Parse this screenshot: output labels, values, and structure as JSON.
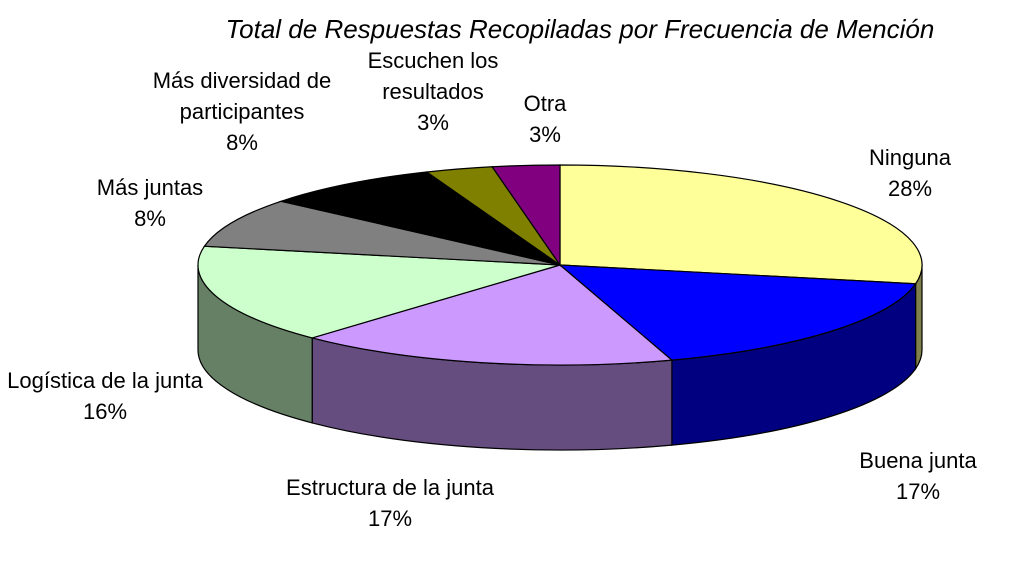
{
  "chart_data": {
    "type": "pie3d",
    "title": "Total de Respuestas Recopiladas por Frecuencia de Mención",
    "categories": [
      "Ninguna",
      "Buena junta",
      "Estructura de la junta",
      "Logística de la junta",
      "Más juntas",
      "Más diversidad de participantes",
      "Escuchen los resultados",
      "Otra"
    ],
    "values": [
      28,
      17,
      17,
      16,
      8,
      8,
      3,
      3
    ],
    "value_labels": [
      "28%",
      "17%",
      "17%",
      "16%",
      "8%",
      "8%",
      "3%",
      "3%"
    ],
    "colors": [
      "#FFFF99",
      "#0000FF",
      "#CC99FF",
      "#CCFFCC",
      "#808080",
      "#000000",
      "#808000",
      "#800080"
    ]
  }
}
